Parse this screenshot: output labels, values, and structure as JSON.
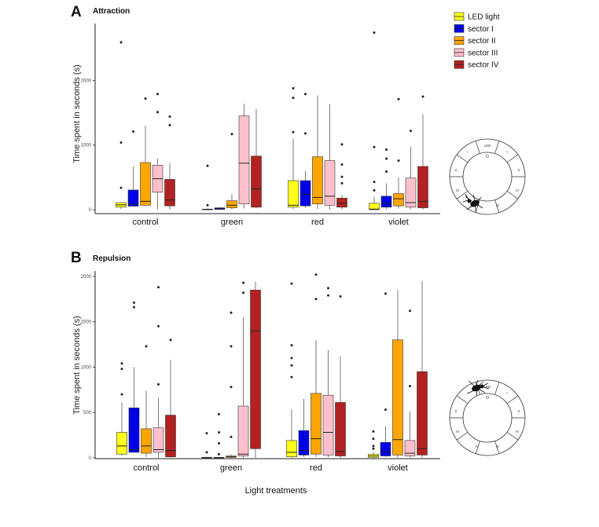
{
  "legend": {
    "entries": [
      {
        "label": "LED light",
        "color": "#ffff1a"
      },
      {
        "label": "sector I",
        "color": "#0000e6"
      },
      {
        "label": "sector II",
        "color": "#ffa500"
      },
      {
        "label": "sector III",
        "color": "#ffc0cb"
      },
      {
        "label": "sector IV",
        "color": "#b22222"
      }
    ]
  },
  "chart_data": [
    {
      "type": "box",
      "panel_letter": "A",
      "title": "Attraction",
      "xlabel": "",
      "ylabel": "Time spent in seconds (s)",
      "ylim": [
        -60,
        2880
      ],
      "yticks": [
        0,
        1000,
        2000
      ],
      "yticklabels": [
        "0",
        "1000",
        "2000"
      ],
      "categories": [
        "control",
        "green",
        "red",
        "violet"
      ],
      "series_names": [
        "LED light",
        "sector I",
        "sector II",
        "sector III",
        "sector IV"
      ],
      "boxes": [
        [
          {
            "lw": 10,
            "q1": 40,
            "med": 75,
            "q3": 110,
            "uw": 110,
            "out": [
              340,
              1040,
              2590
            ]
          },
          {
            "lw": 50,
            "q1": 55,
            "med": 85,
            "q3": 305,
            "uw": 670,
            "out": [
              1210
            ]
          },
          {
            "lw": 60,
            "q1": 70,
            "med": 130,
            "q3": 730,
            "uw": 1300,
            "out": [
              1720
            ]
          },
          {
            "lw": 5,
            "q1": 270,
            "med": 480,
            "q3": 690,
            "uw": 790,
            "out": [
              1510,
              1790
            ]
          },
          {
            "lw": 0,
            "q1": 60,
            "med": 150,
            "q3": 470,
            "uw": 720,
            "out": [
              1310,
              1440
            ]
          }
        ],
        [
          {
            "lw": 0,
            "q1": 0,
            "med": 3,
            "q3": 10,
            "uw": 20,
            "out": [
              70,
              680
            ]
          },
          {
            "lw": 0,
            "q1": 5,
            "med": 15,
            "q3": 30,
            "uw": 40,
            "out": []
          },
          {
            "lw": 0,
            "q1": 30,
            "med": 70,
            "q3": 140,
            "uw": 240,
            "out": [
              1170
            ]
          },
          {
            "lw": 20,
            "q1": 90,
            "med": 720,
            "q3": 1450,
            "uw": 1640,
            "out": []
          },
          {
            "lw": 20,
            "q1": 40,
            "med": 320,
            "q3": 830,
            "uw": 1560,
            "out": []
          }
        ],
        [
          {
            "lw": 10,
            "q1": 40,
            "med": 70,
            "q3": 450,
            "uw": 1100,
            "out": [
              1200,
              1730,
              1880
            ]
          },
          {
            "lw": 30,
            "q1": 60,
            "med": 240,
            "q3": 450,
            "uw": 600,
            "out": [
              1180,
              1790
            ]
          },
          {
            "lw": 10,
            "q1": 90,
            "med": 190,
            "q3": 820,
            "uw": 1770,
            "out": []
          },
          {
            "lw": 0,
            "q1": 70,
            "med": 210,
            "q3": 760,
            "uw": 1630,
            "out": []
          },
          {
            "lw": 0,
            "q1": 40,
            "med": 100,
            "q3": 180,
            "uw": 230,
            "out": [
              410,
              510,
              700,
              1010
            ]
          }
        ],
        [
          {
            "lw": 0,
            "q1": 0,
            "med": 10,
            "q3": 100,
            "uw": 200,
            "out": [
              300,
              430,
              970,
              2740
            ]
          },
          {
            "lw": 10,
            "q1": 40,
            "med": 100,
            "q3": 210,
            "uw": 410,
            "out": [
              590,
              790,
              930
            ]
          },
          {
            "lw": 20,
            "q1": 60,
            "med": 170,
            "q3": 250,
            "uw": 500,
            "out": [
              760,
              1710
            ]
          },
          {
            "lw": 10,
            "q1": 40,
            "med": 110,
            "q3": 490,
            "uw": 970,
            "out": [
              1220
            ]
          },
          {
            "lw": 0,
            "q1": 30,
            "med": 130,
            "q3": 670,
            "uw": 1480,
            "out": [
              1750
            ]
          }
        ]
      ]
    },
    {
      "type": "box",
      "panel_letter": "B",
      "title": "Repulsion",
      "xlabel": "Light treatments",
      "ylabel": "Time spent in seconds (s)",
      "ylim": [
        -10,
        2060
      ],
      "yticks": [
        0,
        500,
        1000,
        1500,
        2000
      ],
      "yticklabels": [
        "0",
        "500",
        "1000",
        "1500",
        "2000"
      ],
      "categories": [
        "control",
        "green",
        "red",
        "violet"
      ],
      "series_names": [
        "LED light",
        "sector I",
        "sector II",
        "sector III",
        "sector IV"
      ],
      "boxes": [
        [
          {
            "lw": 20,
            "q1": 40,
            "med": 130,
            "q3": 280,
            "uw": 610,
            "out": [
              700,
              980,
              1040
            ]
          },
          {
            "lw": 60,
            "q1": 60,
            "med": 90,
            "q3": 550,
            "uw": 1000,
            "out": [
              1660,
              1710
            ]
          },
          {
            "lw": 10,
            "q1": 50,
            "med": 130,
            "q3": 320,
            "uw": 740,
            "out": [
              1230
            ]
          },
          {
            "lw": 0,
            "q1": 60,
            "med": 90,
            "q3": 330,
            "uw": 660,
            "out": [
              810,
              1450,
              1880
            ]
          },
          {
            "lw": 0,
            "q1": 10,
            "med": 80,
            "q3": 470,
            "uw": 1080,
            "out": [
              1300
            ]
          }
        ],
        [
          {
            "lw": 0,
            "q1": 0,
            "med": 2,
            "q3": 5,
            "uw": 10,
            "out": [
              60,
              270
            ]
          },
          {
            "lw": 0,
            "q1": 0,
            "med": 2,
            "q3": 5,
            "uw": 10,
            "out": [
              40,
              160,
              280,
              480
            ]
          },
          {
            "lw": 0,
            "q1": 5,
            "med": 10,
            "q3": 20,
            "uw": 40,
            "out": [
              230,
              780,
              1230,
              1600
            ]
          },
          {
            "lw": 0,
            "q1": 20,
            "med": 40,
            "q3": 570,
            "uw": 1550,
            "out": [
              1820,
              1930
            ]
          },
          {
            "lw": 0,
            "q1": 100,
            "med": 1400,
            "q3": 1850,
            "uw": 1940,
            "out": []
          }
        ],
        [
          {
            "lw": 0,
            "q1": 10,
            "med": 60,
            "q3": 190,
            "uw": 530,
            "out": [
              890,
              1020,
              1100,
              1240,
              1920
            ]
          },
          {
            "lw": 10,
            "q1": 30,
            "med": 80,
            "q3": 300,
            "uw": 650,
            "out": []
          },
          {
            "lw": 10,
            "q1": 40,
            "med": 210,
            "q3": 710,
            "uw": 1300,
            "out": [
              1750,
              2020
            ]
          },
          {
            "lw": 5,
            "q1": 30,
            "med": 280,
            "q3": 690,
            "uw": 1190,
            "out": [
              1790,
              1870
            ]
          },
          {
            "lw": 0,
            "q1": 20,
            "med": 70,
            "q3": 610,
            "uw": 1120,
            "out": [
              1780
            ]
          }
        ],
        [
          {
            "lw": 0,
            "q1": 5,
            "med": 20,
            "q3": 40,
            "uw": 60,
            "out": [
              100,
              130,
              210,
              290
            ]
          },
          {
            "lw": 10,
            "q1": 20,
            "med": 70,
            "q3": 170,
            "uw": 350,
            "out": [
              530,
              1810
            ]
          },
          {
            "lw": 0,
            "q1": 30,
            "med": 200,
            "q3": 1300,
            "uw": 1850,
            "out": []
          },
          {
            "lw": 0,
            "q1": 20,
            "med": 50,
            "q3": 190,
            "uw": 510,
            "out": [
              790,
              1620
            ]
          },
          {
            "lw": 0,
            "q1": 30,
            "med": 100,
            "q3": 950,
            "uw": 1950,
            "out": []
          }
        ]
      ]
    }
  ],
  "arena_labels": {
    "led": "LED",
    "sectors": [
      "I",
      "II",
      "III",
      "IV"
    ]
  }
}
